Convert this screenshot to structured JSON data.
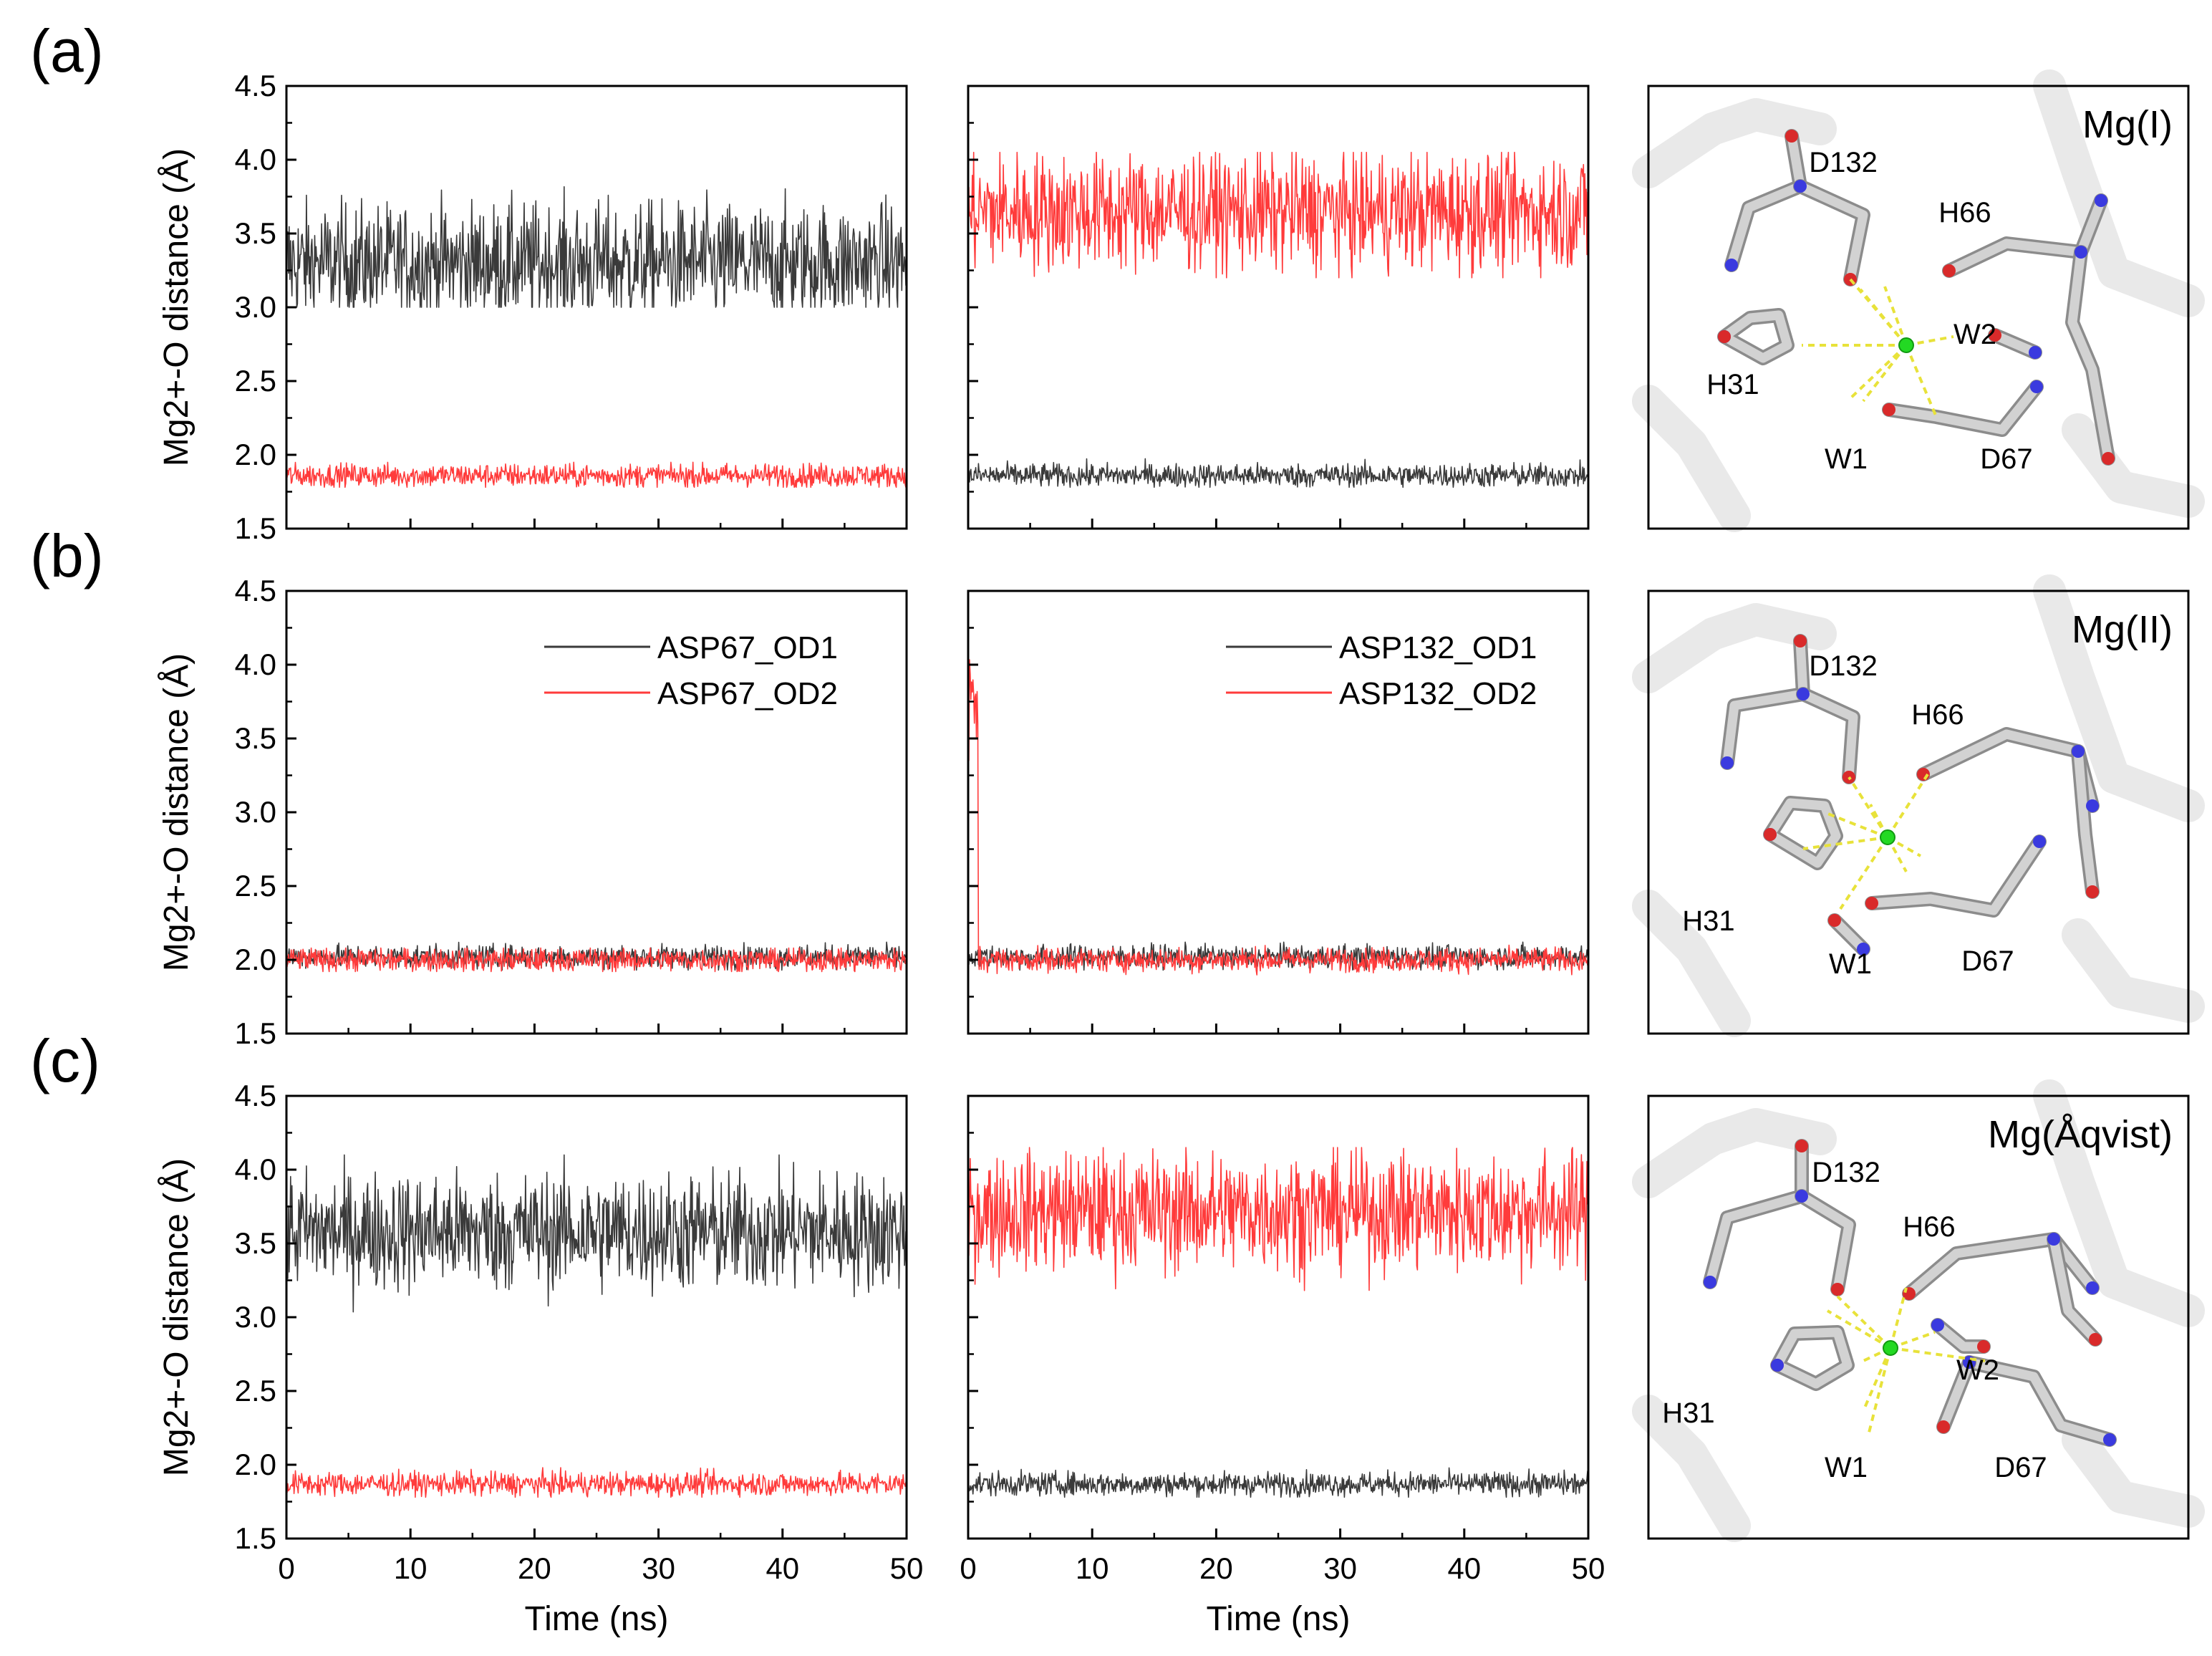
{
  "figure": {
    "panel_labels": [
      "(a)",
      "(b)",
      "(c)"
    ],
    "colors": {
      "od1": "#3a3a3a",
      "od2": "#ff3b3b",
      "axis": "#000000"
    }
  },
  "chart_data": [
    {
      "type": "line",
      "row": 0,
      "col": 0,
      "panel": "(a)",
      "xlabel": "",
      "ylabel": "Mg2+-O distance (Å)",
      "xlim": [
        0,
        50
      ],
      "ylim": [
        1.5,
        4.5
      ],
      "yticks": [
        "1.5",
        "2.0",
        "2.5",
        "3.0",
        "3.5",
        "4.0",
        "4.5"
      ],
      "xticks": [],
      "legend": null,
      "series": [
        {
          "name": "ASP67_OD1",
          "color": "#3a3a3a",
          "mean": 3.3,
          "spread": 0.2,
          "envelope": [
            3.0,
            3.9
          ]
        },
        {
          "name": "ASP67_OD2",
          "color": "#ff3b3b",
          "mean": 1.86,
          "spread": 0.04,
          "envelope": [
            1.78,
            1.95
          ]
        }
      ]
    },
    {
      "type": "line",
      "row": 0,
      "col": 1,
      "panel": "",
      "xlabel": "",
      "ylabel": "",
      "xlim": [
        0,
        50
      ],
      "ylim": [
        1.5,
        4.5
      ],
      "yticks": [],
      "xticks": [],
      "legend": null,
      "series": [
        {
          "name": "ASP132_OD1",
          "color": "#3a3a3a",
          "mean": 1.86,
          "spread": 0.04,
          "envelope": [
            1.78,
            1.98
          ]
        },
        {
          "name": "ASP132_OD2",
          "color": "#ff3b3b",
          "mean": 3.65,
          "spread": 0.2,
          "envelope": [
            3.2,
            4.05
          ]
        }
      ]
    },
    {
      "type": "line",
      "row": 1,
      "col": 0,
      "panel": "(b)",
      "xlabel": "",
      "ylabel": "Mg2+-O distance (Å)",
      "xlim": [
        0,
        50
      ],
      "ylim": [
        1.5,
        4.5
      ],
      "yticks": [
        "1.5",
        "2.0",
        "2.5",
        "3.0",
        "3.5",
        "4.0",
        "4.5"
      ],
      "xticks": [],
      "legend": [
        "ASP67_OD1",
        "ASP67_OD2"
      ],
      "series": [
        {
          "name": "ASP67_OD1",
          "color": "#3a3a3a",
          "mean": 2.02,
          "spread": 0.04,
          "envelope": [
            1.93,
            2.12
          ]
        },
        {
          "name": "ASP67_OD2",
          "color": "#ff3b3b",
          "mean": 2.0,
          "spread": 0.04,
          "envelope": [
            1.92,
            2.08
          ]
        }
      ]
    },
    {
      "type": "line",
      "row": 1,
      "col": 1,
      "panel": "",
      "xlabel": "",
      "ylabel": "",
      "xlim": [
        0,
        50
      ],
      "ylim": [
        1.5,
        4.5
      ],
      "yticks": [],
      "xticks": [],
      "legend": [
        "ASP132_OD1",
        "ASP132_OD2"
      ],
      "series": [
        {
          "name": "ASP132_OD1",
          "color": "#3a3a3a",
          "mean": 2.02,
          "spread": 0.04,
          "envelope": [
            1.93,
            2.12
          ]
        },
        {
          "name": "ASP132_OD2",
          "color": "#ff3b3b",
          "mean": 2.0,
          "spread": 0.04,
          "envelope": [
            1.92,
            2.08
          ],
          "initial_segment": {
            "until_ns": 0.8,
            "mean": 3.7,
            "spread": 0.2
          }
        }
      ]
    },
    {
      "type": "line",
      "row": 2,
      "col": 0,
      "panel": "(c)",
      "xlabel": "Time (ns)",
      "ylabel": "Mg2+-O distance (Å)",
      "xlim": [
        0,
        50
      ],
      "ylim": [
        1.5,
        4.5
      ],
      "yticks": [
        "1.5",
        "2.0",
        "2.5",
        "3.0",
        "3.5",
        "4.0",
        "4.5"
      ],
      "xticks": [
        "0",
        "10",
        "20",
        "30",
        "40",
        "50"
      ],
      "legend": null,
      "series": [
        {
          "name": "ASP67_OD1",
          "color": "#3a3a3a",
          "mean": 3.58,
          "spread": 0.2,
          "envelope": [
            2.9,
            4.1
          ]
        },
        {
          "name": "ASP67_OD2",
          "color": "#ff3b3b",
          "mean": 1.87,
          "spread": 0.04,
          "envelope": [
            1.78,
            1.98
          ]
        }
      ]
    },
    {
      "type": "line",
      "row": 2,
      "col": 1,
      "panel": "",
      "xlabel": "Time (ns)",
      "ylabel": "",
      "xlim": [
        0,
        50
      ],
      "ylim": [
        1.5,
        4.5
      ],
      "yticks": [],
      "xticks": [
        "0",
        "10",
        "20",
        "30",
        "40",
        "50"
      ],
      "legend": null,
      "series": [
        {
          "name": "ASP132_OD1",
          "color": "#3a3a3a",
          "mean": 1.87,
          "spread": 0.04,
          "envelope": [
            1.78,
            2.0
          ]
        },
        {
          "name": "ASP132_OD2",
          "color": "#ff3b3b",
          "mean": 3.72,
          "spread": 0.2,
          "envelope": [
            3.1,
            4.15
          ]
        }
      ]
    }
  ],
  "structures": [
    {
      "title": "Mg(I)",
      "labels": [
        "D132",
        "H66",
        "W2",
        "H31",
        "W1",
        "D67"
      ]
    },
    {
      "title": "Mg(II)",
      "labels": [
        "D132",
        "H66",
        "H31",
        "W1",
        "D67"
      ]
    },
    {
      "title": "Mg(Åqvist)",
      "labels": [
        "D132",
        "H66",
        "W2",
        "H31",
        "W1",
        "D67"
      ]
    }
  ]
}
